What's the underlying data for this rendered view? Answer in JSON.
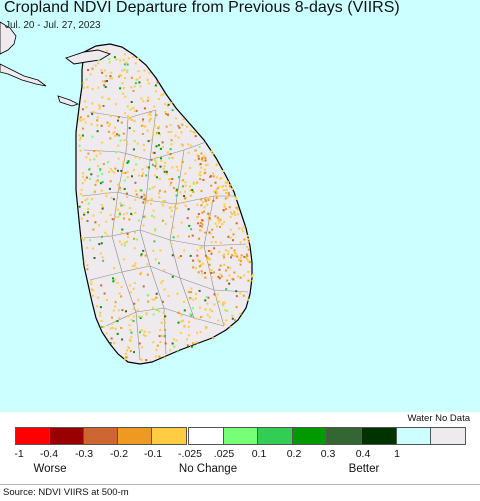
{
  "title": "Cropland NDVI Departure from Previous 8-days (VIIRS)",
  "date_range": "Jul. 20 - Jul. 27, 2023",
  "legend": {
    "swatches": [
      {
        "color": "#ff0000"
      },
      {
        "color": "#990000"
      },
      {
        "color": "#cc6633"
      },
      {
        "color": "#ee9922"
      },
      {
        "color": "#ffcc44"
      },
      {
        "color": "#ffffff"
      },
      {
        "color": "#77ff77"
      },
      {
        "color": "#33cc55"
      },
      {
        "color": "#009900"
      },
      {
        "color": "#336633"
      },
      {
        "color": "#003300"
      },
      {
        "color": "#ccffff"
      },
      {
        "color": "#eeeaee"
      }
    ],
    "ticks": [
      "-1",
      "-0.4",
      "-0.3",
      "-0.2",
      "-0.1",
      "-.025",
      ".025",
      "0.1",
      "0.2",
      "0.3",
      "0.4",
      "1"
    ],
    "worse_label": "Worse",
    "no_change_label": "No Change",
    "better_label": "Better",
    "water_nodata_label": "Water No Data"
  },
  "source": "Source: NDVI VIIRS at 500-m",
  "colors": {
    "ocean": "#ccffff",
    "land": "#eeeaee",
    "mainland_india": "#eeeaee",
    "boundary": "#777777",
    "coastline": "#000000"
  }
}
